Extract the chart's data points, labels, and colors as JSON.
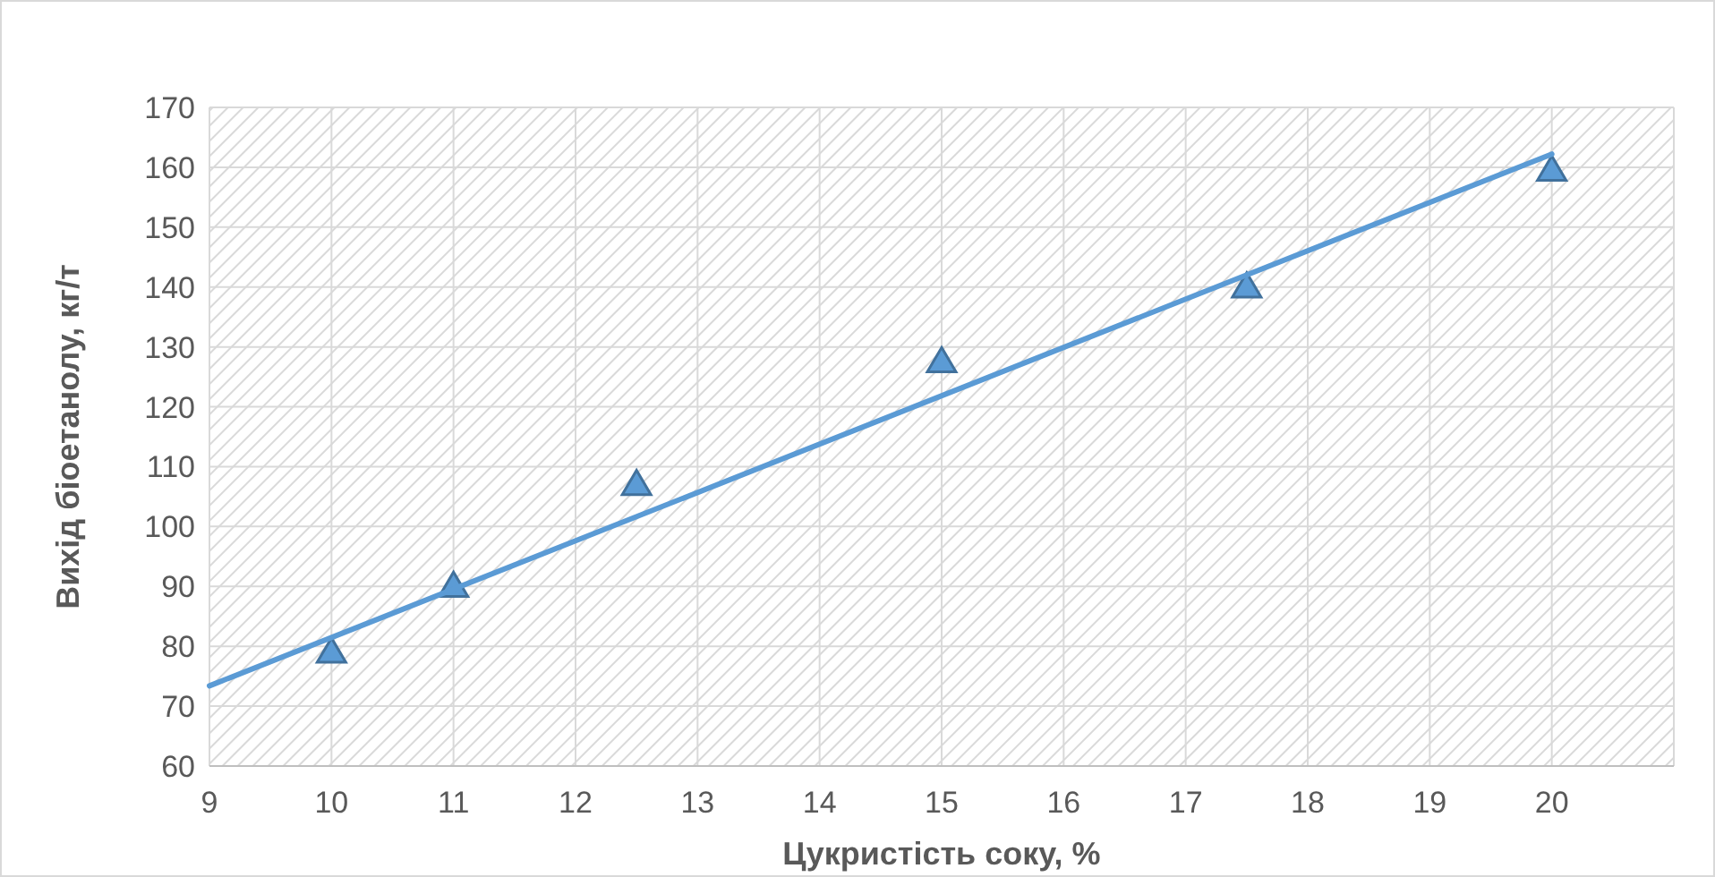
{
  "chart_data": {
    "type": "scatter",
    "xlabel": "Цукристість соку, %",
    "ylabel": "Вихід біоетанолу, кг/т",
    "xlim": [
      9,
      21
    ],
    "xticks": [
      9,
      10,
      11,
      12,
      13,
      14,
      15,
      16,
      17,
      18,
      19,
      20,
      {
        "value": 21,
        "label": null
      }
    ],
    "ylim": [
      60,
      170
    ],
    "yticks": [
      60,
      70,
      80,
      90,
      100,
      110,
      120,
      130,
      140,
      150,
      160,
      170
    ],
    "grid": true,
    "series": [
      {
        "color": "#5b9bd5",
        "marker": "triangle",
        "x": [
          10,
          11,
          12.5,
          15,
          17.5,
          20
        ],
        "values": [
          79,
          90,
          107,
          127.5,
          140,
          159.5
        ]
      },
      {
        "type": "line",
        "color": "#5b9bd5",
        "marker": "none",
        "line_style": "solid",
        "x": [
          9,
          20
        ],
        "values": [
          73.4,
          162.2
        ]
      }
    ]
  }
}
